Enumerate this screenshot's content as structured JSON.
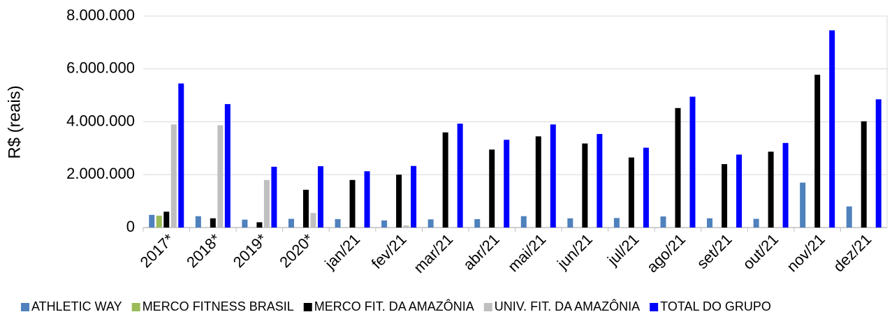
{
  "chart_data": {
    "type": "bar",
    "ylabel": "R$ (reais)",
    "categories": [
      "2017*",
      "2018*",
      "2019*",
      "2020*",
      "jan/21",
      "fev/21",
      "mar/21",
      "abr/21",
      "mai/21",
      "jun/21",
      "jul/21",
      "ago/21",
      "set/21",
      "out/21",
      "nov/21",
      "dez/21"
    ],
    "series": [
      {
        "name": "ATHLETIC WAY",
        "color": "#4f81bd",
        "values": [
          480000,
          430000,
          300000,
          330000,
          320000,
          270000,
          310000,
          320000,
          430000,
          350000,
          360000,
          420000,
          350000,
          330000,
          1700000,
          800000
        ]
      },
      {
        "name": "MERCO FITNESS BRASIL",
        "color": "#9bbb59",
        "values": [
          450000,
          0,
          0,
          0,
          0,
          0,
          0,
          0,
          0,
          0,
          0,
          0,
          0,
          0,
          0,
          0
        ]
      },
      {
        "name": "MERCO FIT. DA AMAZÔNIA",
        "color": "#000000",
        "values": [
          600000,
          350000,
          200000,
          1430000,
          1800000,
          2000000,
          3600000,
          2950000,
          3450000,
          3180000,
          2650000,
          4520000,
          2400000,
          2870000,
          5780000,
          4020000
        ]
      },
      {
        "name": "UNIV. FIT. DA AMAZÔNIA",
        "color": "#bfbfbf",
        "values": [
          3900000,
          3870000,
          1800000,
          550000,
          0,
          80000,
          0,
          0,
          0,
          0,
          0,
          0,
          0,
          0,
          0,
          0
        ]
      },
      {
        "name": "TOTAL DO GRUPO",
        "color": "#0000ff",
        "values": [
          5450000,
          4670000,
          2300000,
          2320000,
          2130000,
          2330000,
          3930000,
          3320000,
          3900000,
          3540000,
          3020000,
          4950000,
          2760000,
          3200000,
          7460000,
          4850000
        ]
      }
    ],
    "ylim": [
      0,
      8000000
    ],
    "yticks": [
      0,
      {
        "value": 2000000,
        "label": "2.000.000"
      },
      {
        "value": 4000000,
        "label": "4.000.000"
      },
      {
        "value": 6000000,
        "label": "6.000.000"
      },
      {
        "value": 8000000,
        "label": "8.000.000"
      }
    ],
    "grid": true,
    "legend": "bottom"
  }
}
